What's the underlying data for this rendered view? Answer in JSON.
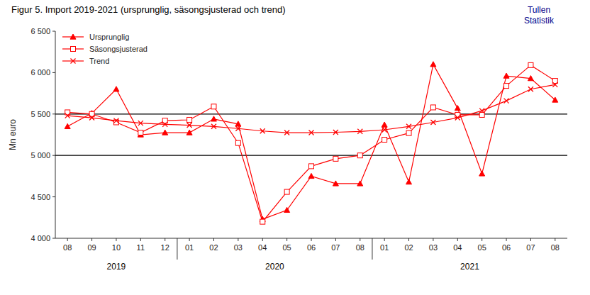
{
  "chart_data": {
    "type": "line",
    "title": "Figur 5. Import 2019-2021 (ursprunglig, säsongsjusterad och trend)",
    "watermark": "Tullen\nStatistik",
    "ylabel": "Mn euro",
    "categories": [
      "08",
      "09",
      "10",
      "11",
      "12",
      "01",
      "02",
      "03",
      "04",
      "05",
      "06",
      "07",
      "08",
      "01",
      "02",
      "03",
      "04",
      "05",
      "06",
      "07",
      "08"
    ],
    "groups": [
      {
        "label": "2019",
        "start": 0,
        "end": 4
      },
      {
        "label": "2020",
        "start": 5,
        "end": 12
      },
      {
        "label": "2021",
        "start": 13,
        "end": 20
      }
    ],
    "series": [
      {
        "name": "Ursprunglig",
        "color": "#ff0000",
        "marker": "triangle",
        "line_style": "solid",
        "values": [
          5350,
          5510,
          5800,
          5250,
          5275,
          5275,
          5440,
          5380,
          4230,
          4340,
          4750,
          4660,
          4660,
          5370,
          4680,
          6100,
          5570,
          4780,
          5960,
          5930,
          5670
        ]
      },
      {
        "name": "Säsongsjusterad",
        "color": "#ff0000",
        "marker": "square-open",
        "line_style": "solid",
        "values": [
          5520,
          5500,
          5400,
          5275,
          5420,
          5430,
          5590,
          5150,
          4200,
          4560,
          4870,
          4960,
          5000,
          5190,
          5270,
          5580,
          5490,
          5490,
          5840,
          6090,
          5900
        ]
      },
      {
        "name": "Trend",
        "color": "#ff0000",
        "marker": "x",
        "line_style": "solid",
        "values": [
          5480,
          5455,
          5420,
          5390,
          5375,
          5365,
          5350,
          5325,
          5295,
          5275,
          5275,
          5280,
          5290,
          5310,
          5350,
          5400,
          5455,
          5540,
          5660,
          5800,
          5855
        ]
      }
    ],
    "hlines": [
      5000,
      5500
    ],
    "ylim": [
      4000,
      6500
    ],
    "yticks": [
      {
        "value": 4000,
        "label": "4 000"
      },
      {
        "value": 4500,
        "label": "4 500"
      },
      {
        "value": 5000,
        "label": "5 000"
      },
      {
        "value": 5500,
        "label": "5 500"
      },
      {
        "value": 6000,
        "label": "6 000"
      },
      {
        "value": 6500,
        "label": "6 500"
      }
    ],
    "grid": false,
    "legend": "upper left"
  }
}
